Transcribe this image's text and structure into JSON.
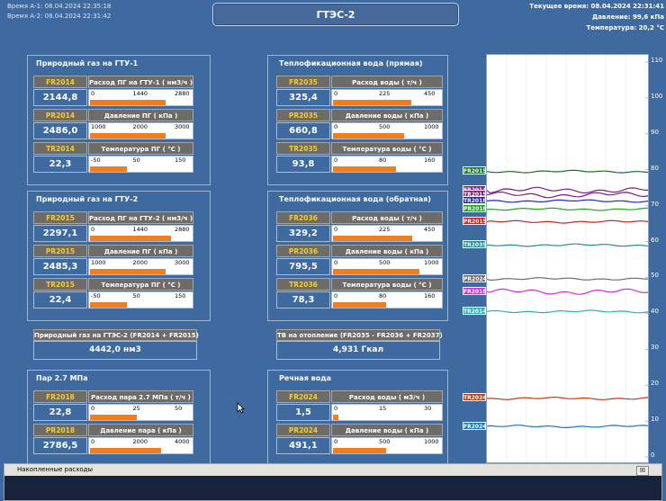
{
  "header": {
    "timeA1_label": "Время А-1:",
    "timeA1": "08.04.2024 22:35:18",
    "timeA2_label": "Время А-2:",
    "timeA2": "08.04.2024 22:31:42",
    "title": "ГТЭС-2",
    "current_time": "Текущее время:  08.04.2024  22:31:41",
    "pressure": "Давление:  99,6 кПа",
    "temperature": "Температура:  20,2 °C"
  },
  "gas_gtu1": {
    "title": "Природный газ на ГТУ-1",
    "rows": [
      {
        "tag": "FR2014",
        "value": "2144,8",
        "label": "Расход ПГ на ГТУ-1  ( нм3/ч )",
        "scale": [
          "0",
          "1440",
          "2880"
        ],
        "fraction": 0.745
      },
      {
        "tag": "PR2014",
        "value": "2486,0",
        "label": "Давление ПГ  ( кПа )",
        "scale": [
          "1000",
          "2000",
          "3000"
        ],
        "fraction": 0.743
      },
      {
        "tag": "TR2014",
        "value": "22,3",
        "label": "Температура ПГ  ( °C )",
        "scale": [
          "-50",
          "50",
          "150"
        ],
        "fraction": 0.36
      }
    ]
  },
  "heat_direct": {
    "title": "Теплофикационная вода (прямая)",
    "rows": [
      {
        "tag": "FR2035",
        "value": "325,4",
        "label": "Расход воды  ( т/ч )",
        "scale": [
          "0",
          "225",
          "450"
        ],
        "fraction": 0.723
      },
      {
        "tag": "PR2035",
        "value": "660,8",
        "label": "Давление воды  ( кПа )",
        "scale": [
          "0",
          "500",
          "1000"
        ],
        "fraction": 0.661
      },
      {
        "tag": "TR2035",
        "value": "93,8",
        "label": "Температура воды  ( °C )",
        "scale": [
          "0",
          "80",
          "160"
        ],
        "fraction": 0.586
      }
    ]
  },
  "gas_gtu2": {
    "title": "Природный газ на ГТУ-2",
    "rows": [
      {
        "tag": "FR2015",
        "value": "2297,1",
        "label": "Расход ПГ на ГТУ-2  ( нм3/ч )",
        "scale": [
          "0",
          "1440",
          "2880"
        ],
        "fraction": 0.798
      },
      {
        "tag": "PR2015",
        "value": "2485,3",
        "label": "Давление ПГ  ( кПа )",
        "scale": [
          "1000",
          "2000",
          "3000"
        ],
        "fraction": 0.743
      },
      {
        "tag": "TR2015",
        "value": "22,4",
        "label": "Температура ПГ  ( °C )",
        "scale": [
          "-50",
          "50",
          "150"
        ],
        "fraction": 0.36
      }
    ]
  },
  "heat_return": {
    "title": "Теплофикационная вода (обратная)",
    "rows": [
      {
        "tag": "FR2036",
        "value": "329,2",
        "label": "Расход воды  ( т/ч )",
        "scale": [
          "0",
          "225",
          "450"
        ],
        "fraction": 0.732
      },
      {
        "tag": "PR2036",
        "value": "795,5",
        "label": "Давление воды  ( кПа )",
        "scale": [
          "0",
          "500",
          "1000"
        ],
        "fraction": 0.796
      },
      {
        "tag": "TR2036",
        "value": "78,3",
        "label": "Температура воды  ( °C )",
        "scale": [
          "0",
          "80",
          "160"
        ],
        "fraction": 0.49
      }
    ]
  },
  "totals": {
    "gas_label": "Природный газ на ГТЭС-2 (FR2014 + FR2015)",
    "gas_value": "4442,0 нм3",
    "heat_label": "ТВ на отопление (FR2035 - FR2036 + FR2037)",
    "heat_value": "4,931 Гкал"
  },
  "steam": {
    "title": "Пар 2.7 МПа",
    "rows": [
      {
        "tag": "FR2018",
        "value": "22,8",
        "label": "Расход пара 2.7 МПа  ( т/ч )",
        "scale": [
          "0",
          "25",
          "50"
        ],
        "fraction": 0.456
      },
      {
        "tag": "PR2018",
        "value": "2786,5",
        "label": "Давление пара  ( кПа )",
        "scale": [
          "0",
          "2000",
          "4000"
        ],
        "fraction": 0.697
      }
    ]
  },
  "river": {
    "title": "Речная вода",
    "rows": [
      {
        "tag": "FR2024",
        "value": "1,5",
        "label": "Расход воды  ( м3/ч )",
        "scale": [
          "0",
          "15",
          "30"
        ],
        "fraction": 0.05
      },
      {
        "tag": "PR2024",
        "value": "491,1",
        "label": "Давление воды  ( кПа )",
        "scale": [
          "0",
          "500",
          "1000"
        ],
        "fraction": 0.491
      }
    ]
  },
  "trend": {
    "y_ticks": [
      "110",
      "100",
      "90",
      "80",
      "70",
      "60",
      "50",
      "40",
      "30",
      "20",
      "10",
      "0"
    ],
    "markers": [
      {
        "tag": "FR2015",
        "color": "#1a6e2a",
        "level": 79.5
      },
      {
        "tag": "FR2014",
        "color": "#7a1f7a",
        "level": 74.3
      },
      {
        "tag": "TR2015",
        "color": "#7a1f7a",
        "level": 73.0
      },
      {
        "tag": "TR2018",
        "color": "#2222c8",
        "level": 71.3
      },
      {
        "tag": "PR2018",
        "color": "#22a22a",
        "level": 69.0
      },
      {
        "tag": "PR2015",
        "color": "#d02020",
        "level": 65.5
      },
      {
        "tag": "TR2035",
        "color": "#2a8a8a",
        "level": 59.0
      },
      {
        "tag": "PR2024",
        "color": "#6d6c69",
        "level": 49.6
      },
      {
        "tag": "PR2018b",
        "label": "FR2018",
        "color": "#d030d0",
        "level": 46.0
      },
      {
        "tag": "TR2014",
        "color": "#2ab0b0",
        "level": 40.5
      },
      {
        "tag": "TR2024",
        "color": "#c03a10",
        "level": 16.3
      },
      {
        "tag": "FR2024",
        "color": "#1a7ab0",
        "level": 8.5
      }
    ]
  },
  "bottom_window": {
    "title": "Накопленные расходы",
    "close": "☒"
  }
}
